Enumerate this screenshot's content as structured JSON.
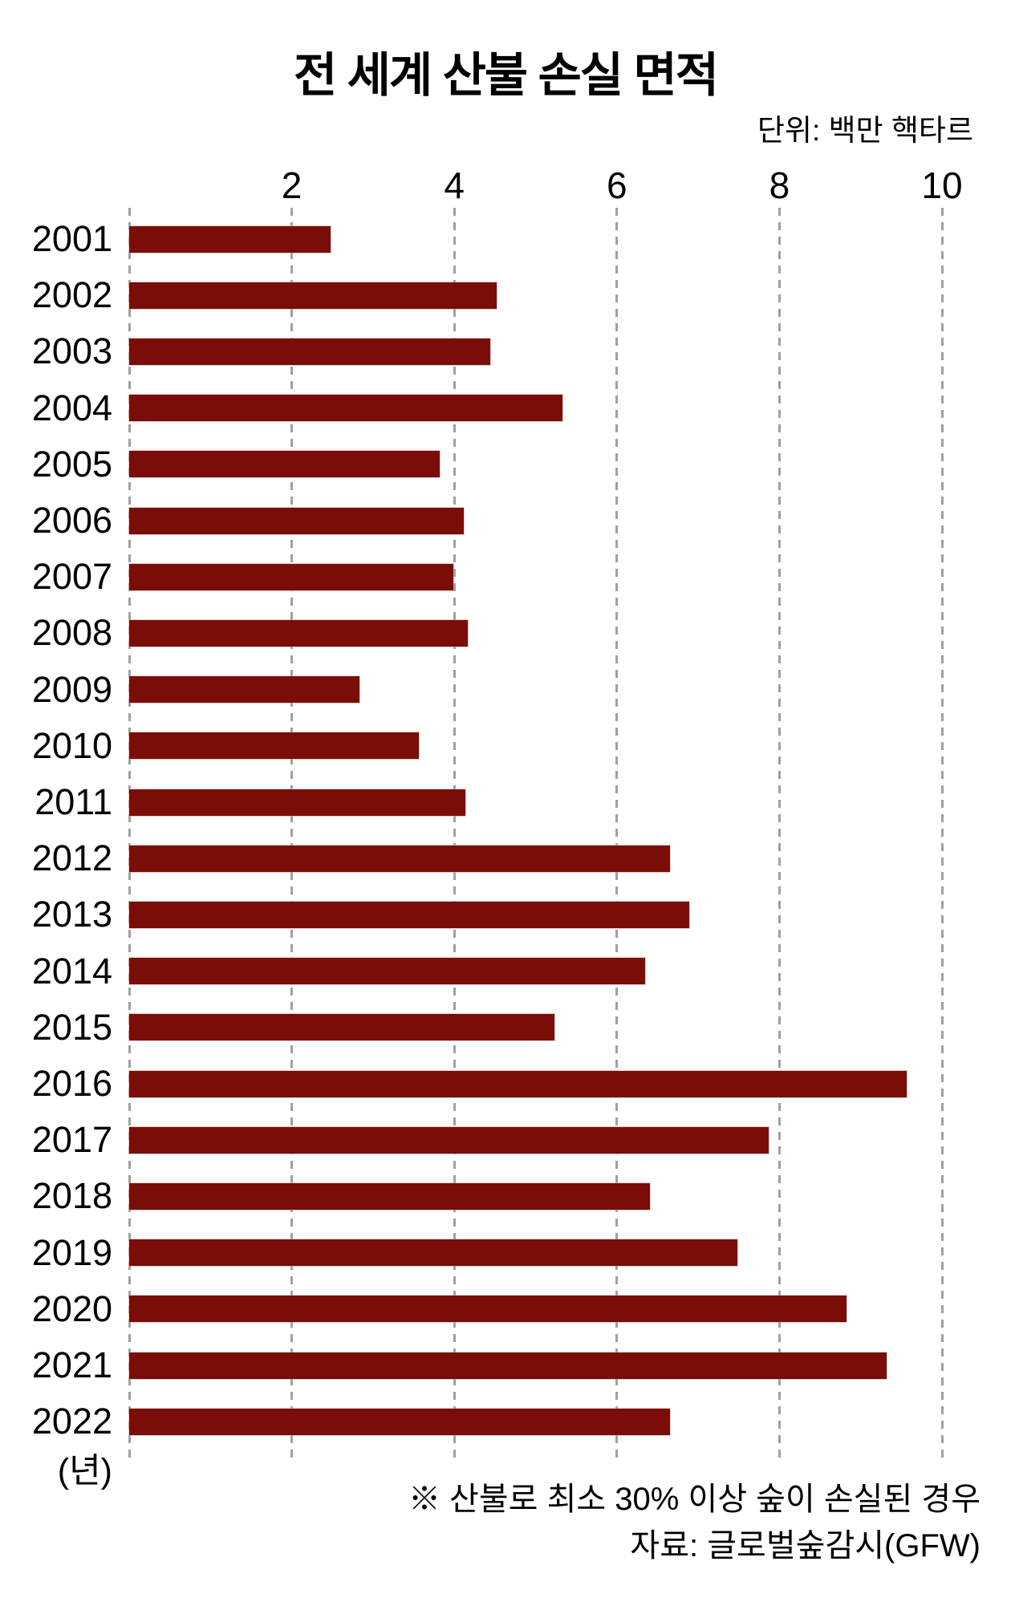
{
  "title": "전 세계 산불 손실 면적",
  "unit_label": "단위: 백만 핵타르",
  "axis": {
    "y_axis_caption": "(년)"
  },
  "footnotes": {
    "note": "※ 산불로 최소 30% 이상 숲이 손실된 경우",
    "source": "자료: 글로벌숲감시(GFW)"
  },
  "colors": {
    "bar": "#7a0d08",
    "gridline": "#a0a0a0",
    "text": "#000000",
    "background": "#ffffff"
  },
  "chart_data": {
    "type": "bar",
    "orientation": "horizontal",
    "title": "전 세계 산불 손실 면적",
    "unit": "백만 핵타르",
    "categories": [
      "2001",
      "2002",
      "2003",
      "2004",
      "2005",
      "2006",
      "2007",
      "2008",
      "2009",
      "2010",
      "2011",
      "2012",
      "2013",
      "2014",
      "2015",
      "2016",
      "2017",
      "2018",
      "2019",
      "2020",
      "2021",
      "2022"
    ],
    "values": [
      2.48,
      4.52,
      4.44,
      5.33,
      3.82,
      4.12,
      3.99,
      4.17,
      2.83,
      3.56,
      4.14,
      6.65,
      6.89,
      6.35,
      5.23,
      9.57,
      7.87,
      6.41,
      7.48,
      8.83,
      9.32,
      6.65
    ],
    "xlabel": "",
    "ylabel": "(년)",
    "xlim": [
      0,
      10
    ],
    "x_ticks": [
      2,
      4,
      6,
      8,
      10
    ],
    "grid": "dashed-vertical",
    "legend": "none",
    "note": "※ 산불로 최소 30% 이상 숲이 손실된 경우",
    "source": "자료: 글로벌숲감시(GFW)"
  }
}
